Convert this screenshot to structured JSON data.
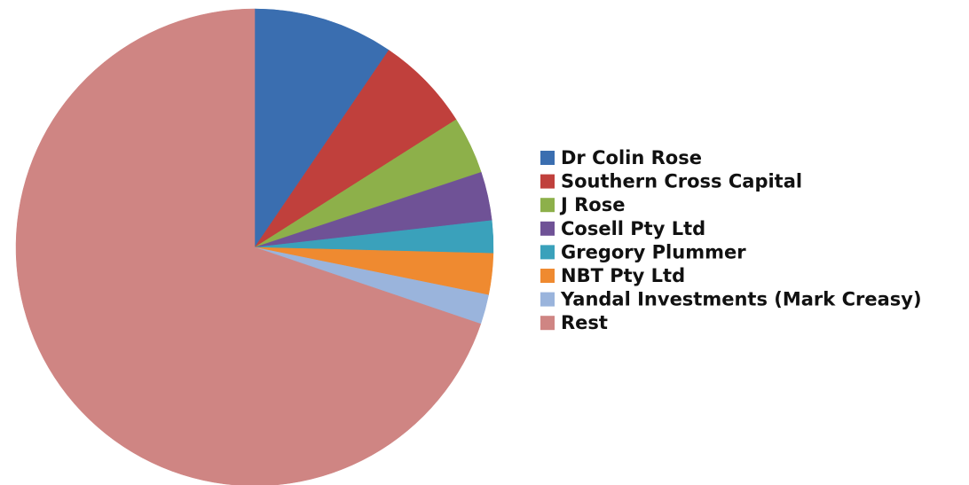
{
  "chart_data": {
    "type": "pie",
    "categories": [
      "Dr Colin Rose",
      "Southern Cross Capital",
      "J Rose",
      "Cosell Pty Ltd",
      "Gregory Plummer",
      "NBT Pty Ltd",
      "Yandal Investments (Mark Creasy)",
      "Rest"
    ],
    "values": [
      9.5,
      6.5,
      3.9,
      3.3,
      2.2,
      2.8,
      2.0,
      69.8
    ],
    "colors": [
      "#3a6eb0",
      "#c0403c",
      "#8db04a",
      "#6f5296",
      "#3aa1bb",
      "#ef8a30",
      "#9ab4dc",
      "#cf8583"
    ],
    "legend": "right"
  }
}
